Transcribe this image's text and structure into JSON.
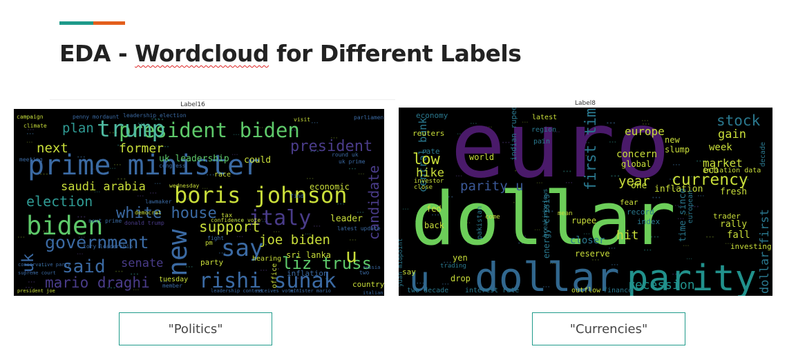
{
  "slide": {
    "title_prefix": "EDA - ",
    "title_misspelled": "Wordcloud",
    "title_suffix": " for Different Labels"
  },
  "clouds": [
    {
      "label": "Label16",
      "caption": "\"Politics\"",
      "words": [
        {
          "t": "prime minister",
          "c": "#3b6aa3"
        },
        {
          "t": "president biden",
          "c": "#5ec96a"
        },
        {
          "t": "trump",
          "c": "#4fb9a0"
        },
        {
          "t": "boris johnson",
          "c": "#c9de3a"
        },
        {
          "t": "biden",
          "c": "#5ec96a"
        },
        {
          "t": "new",
          "c": "#3b6aa3"
        },
        {
          "t": "say",
          "c": "#3b6aa3"
        },
        {
          "t": "rishi sunak",
          "c": "#3b6aa3"
        },
        {
          "t": "government",
          "c": "#3b6aa3"
        },
        {
          "t": "said",
          "c": "#3b6aa3"
        },
        {
          "t": "election",
          "c": "#2f9a93"
        },
        {
          "t": "white house",
          "c": "#3b6aa3"
        },
        {
          "t": "saudi arabia",
          "c": "#c9de3a"
        },
        {
          "t": "joe biden",
          "c": "#c9de3a"
        },
        {
          "t": "liz truss",
          "c": "#5ec96a"
        },
        {
          "t": "mario draghi",
          "c": "#4a3c8a"
        },
        {
          "t": "italy",
          "c": "#4a3c8a"
        },
        {
          "t": "president",
          "c": "#4a3c8a"
        },
        {
          "t": "support",
          "c": "#c9de3a"
        },
        {
          "t": "former",
          "c": "#c9de3a"
        },
        {
          "t": "next",
          "c": "#c9de3a"
        },
        {
          "t": "plan",
          "c": "#2f9a93"
        },
        {
          "t": "u",
          "c": "#c9de3a"
        },
        {
          "t": "uk",
          "c": "#3b6aa3"
        },
        {
          "t": "senate",
          "c": "#4a3c8a"
        },
        {
          "t": "candidate",
          "c": "#4a3c8a"
        },
        {
          "t": "uk leadership",
          "c": "#5ec96a"
        },
        {
          "t": "economic",
          "c": "#c9de3a"
        },
        {
          "t": "could",
          "c": "#c9de3a"
        },
        {
          "t": "leader",
          "c": "#c9de3a"
        },
        {
          "t": "sri lanka",
          "c": "#c9de3a"
        },
        {
          "t": "party",
          "c": "#c9de3a"
        },
        {
          "t": "inflation",
          "c": "#3b6aa3"
        },
        {
          "t": "country",
          "c": "#c9de3a"
        },
        {
          "t": "tuesday",
          "c": "#c9de3a"
        },
        {
          "t": "hearing",
          "c": "#c9de3a"
        },
        {
          "t": "office",
          "c": "#c9de3a"
        },
        {
          "t": "race",
          "c": "#c9de3a"
        },
        {
          "t": "tax",
          "c": "#c9de3a"
        },
        {
          "t": "campaign",
          "c": "#c9de3a"
        },
        {
          "t": "penny mordaunt",
          "c": "#3b6aa3"
        },
        {
          "t": "leadership election",
          "c": "#3b6aa3"
        },
        {
          "t": "climate",
          "c": "#c9de3a"
        },
        {
          "t": "meeting",
          "c": "#3b6aa3"
        },
        {
          "t": "congress",
          "c": "#3b6aa3"
        },
        {
          "t": "confidence vote",
          "c": "#c9de3a"
        },
        {
          "t": "democrat",
          "c": "#c9de3a"
        },
        {
          "t": "lawmaker",
          "c": "#3b6aa3"
        },
        {
          "t": "donald trump",
          "c": "#4a3c8a"
        },
        {
          "t": "tory leadership",
          "c": "#3b6aa3"
        },
        {
          "t": "conservative party",
          "c": "#3b6aa3"
        },
        {
          "t": "supreme court",
          "c": "#3b6aa3"
        },
        {
          "t": "president joe",
          "c": "#c9de3a"
        },
        {
          "t": "member",
          "c": "#3b6aa3"
        },
        {
          "t": "pm",
          "c": "#c9de3a"
        },
        {
          "t": "fight",
          "c": "#3b6aa3"
        },
        {
          "t": "wednesday",
          "c": "#c9de3a"
        },
        {
          "t": "visit",
          "c": "#c9de3a"
        },
        {
          "t": "find",
          "c": "#3b6aa3"
        },
        {
          "t": "two",
          "c": "#3b6aa3"
        },
        {
          "t": "russia",
          "c": "#3b6aa3"
        },
        {
          "t": "parliament",
          "c": "#3b6aa3"
        },
        {
          "t": "next prime",
          "c": "#3b6aa3"
        },
        {
          "t": "italian",
          "c": "#3b6aa3"
        },
        {
          "t": "round uk",
          "c": "#3b6aa3"
        },
        {
          "t": "uk prime",
          "c": "#3b6aa3"
        },
        {
          "t": "latest update",
          "c": "#3b6aa3"
        },
        {
          "t": "receives vote",
          "c": "#3b6aa3"
        },
        {
          "t": "leadership contest",
          "c": "#3b6aa3"
        },
        {
          "t": "minister mario",
          "c": "#3b6aa3"
        }
      ]
    },
    {
      "label": "Label8",
      "caption": "\"Currencies\"",
      "words": [
        {
          "t": "euro",
          "c": "#4a1a6a"
        },
        {
          "t": "dollar",
          "c": "#6cce59"
        },
        {
          "t": "dollar",
          "c": "#31678e"
        },
        {
          "t": "parity",
          "c": "#21918c"
        },
        {
          "t": "u",
          "c": "#31678e"
        },
        {
          "t": "first time",
          "c": "#2a788e"
        },
        {
          "t": "currency",
          "c": "#c9de3a"
        },
        {
          "t": "stock",
          "c": "#2a788e"
        },
        {
          "t": "europe",
          "c": "#c9de3a"
        },
        {
          "t": "year",
          "c": "#c9de3a"
        },
        {
          "t": "market",
          "c": "#c9de3a"
        },
        {
          "t": "recession",
          "c": "#21918c"
        },
        {
          "t": "dollar first",
          "c": "#2a788e"
        },
        {
          "t": "parity u",
          "c": "#3b5998"
        },
        {
          "t": "central bank",
          "c": "#2a788e"
        },
        {
          "t": "low",
          "c": "#c9de3a"
        },
        {
          "t": "hike",
          "c": "#c9de3a"
        },
        {
          "t": "gain",
          "c": "#c9de3a"
        },
        {
          "t": "week",
          "c": "#c9de3a"
        },
        {
          "t": "ecb",
          "c": "#c9de3a"
        },
        {
          "t": "hit",
          "c": "#c9de3a"
        },
        {
          "t": "fall",
          "c": "#c9de3a"
        },
        {
          "t": "rally",
          "c": "#c9de3a"
        },
        {
          "t": "fresh",
          "c": "#c9de3a"
        },
        {
          "t": "trader",
          "c": "#c9de3a"
        },
        {
          "t": "investing",
          "c": "#c9de3a"
        },
        {
          "t": "inflation",
          "c": "#c9de3a"
        },
        {
          "t": "inflation data",
          "c": "#c9de3a"
        },
        {
          "t": "concern",
          "c": "#c9de3a"
        },
        {
          "t": "global",
          "c": "#c9de3a"
        },
        {
          "t": "new",
          "c": "#c9de3a"
        },
        {
          "t": "slump",
          "c": "#c9de3a"
        },
        {
          "t": "one",
          "c": "#c9de3a"
        },
        {
          "t": "time since",
          "c": "#2a788e"
        },
        {
          "t": "energy crisis",
          "c": "#2a788e"
        },
        {
          "t": "closer",
          "c": "#2a788e"
        },
        {
          "t": "reserve",
          "c": "#c9de3a"
        },
        {
          "t": "yen",
          "c": "#c9de3a"
        },
        {
          "t": "drop",
          "c": "#c9de3a"
        },
        {
          "t": "say",
          "c": "#c9de3a"
        },
        {
          "t": "two decade",
          "c": "#2a788e"
        },
        {
          "t": "interest rate",
          "c": "#2a788e"
        },
        {
          "t": "outflow",
          "c": "#c9de3a"
        },
        {
          "t": "finance",
          "c": "#2a788e"
        },
        {
          "t": "economy",
          "c": "#2a788e"
        },
        {
          "t": "reuters",
          "c": "#c9de3a"
        },
        {
          "t": "world",
          "c": "#c9de3a"
        },
        {
          "t": "indian rupee",
          "c": "#2a788e"
        },
        {
          "t": "rupee",
          "c": "#c9de3a"
        },
        {
          "t": "fed",
          "c": "#c9de3a"
        },
        {
          "t": "back",
          "c": "#c9de3a"
        },
        {
          "t": "latest",
          "c": "#c9de3a"
        },
        {
          "t": "region",
          "c": "#2a788e"
        },
        {
          "t": "pain",
          "c": "#2a788e"
        },
        {
          "t": "fear",
          "c": "#c9de3a"
        },
        {
          "t": "record",
          "c": "#2a788e"
        },
        {
          "t": "index",
          "c": "#2a788e"
        },
        {
          "t": "european",
          "c": "#2a788e"
        },
        {
          "t": "decade",
          "c": "#2a788e"
        },
        {
          "t": "rate",
          "c": "#2a788e"
        },
        {
          "t": "investor",
          "c": "#c9de3a"
        },
        {
          "t": "close",
          "c": "#c9de3a"
        },
        {
          "t": "trading",
          "c": "#2a788e"
        },
        {
          "t": "come",
          "c": "#c9de3a"
        },
        {
          "t": "mean",
          "c": "#c9de3a"
        },
        {
          "t": "yuan midpoint",
          "c": "#2a788e"
        },
        {
          "t": "breakingviews",
          "c": "#2a788e"
        },
        {
          "t": "pakistan",
          "c": "#2a788e"
        }
      ]
    }
  ]
}
